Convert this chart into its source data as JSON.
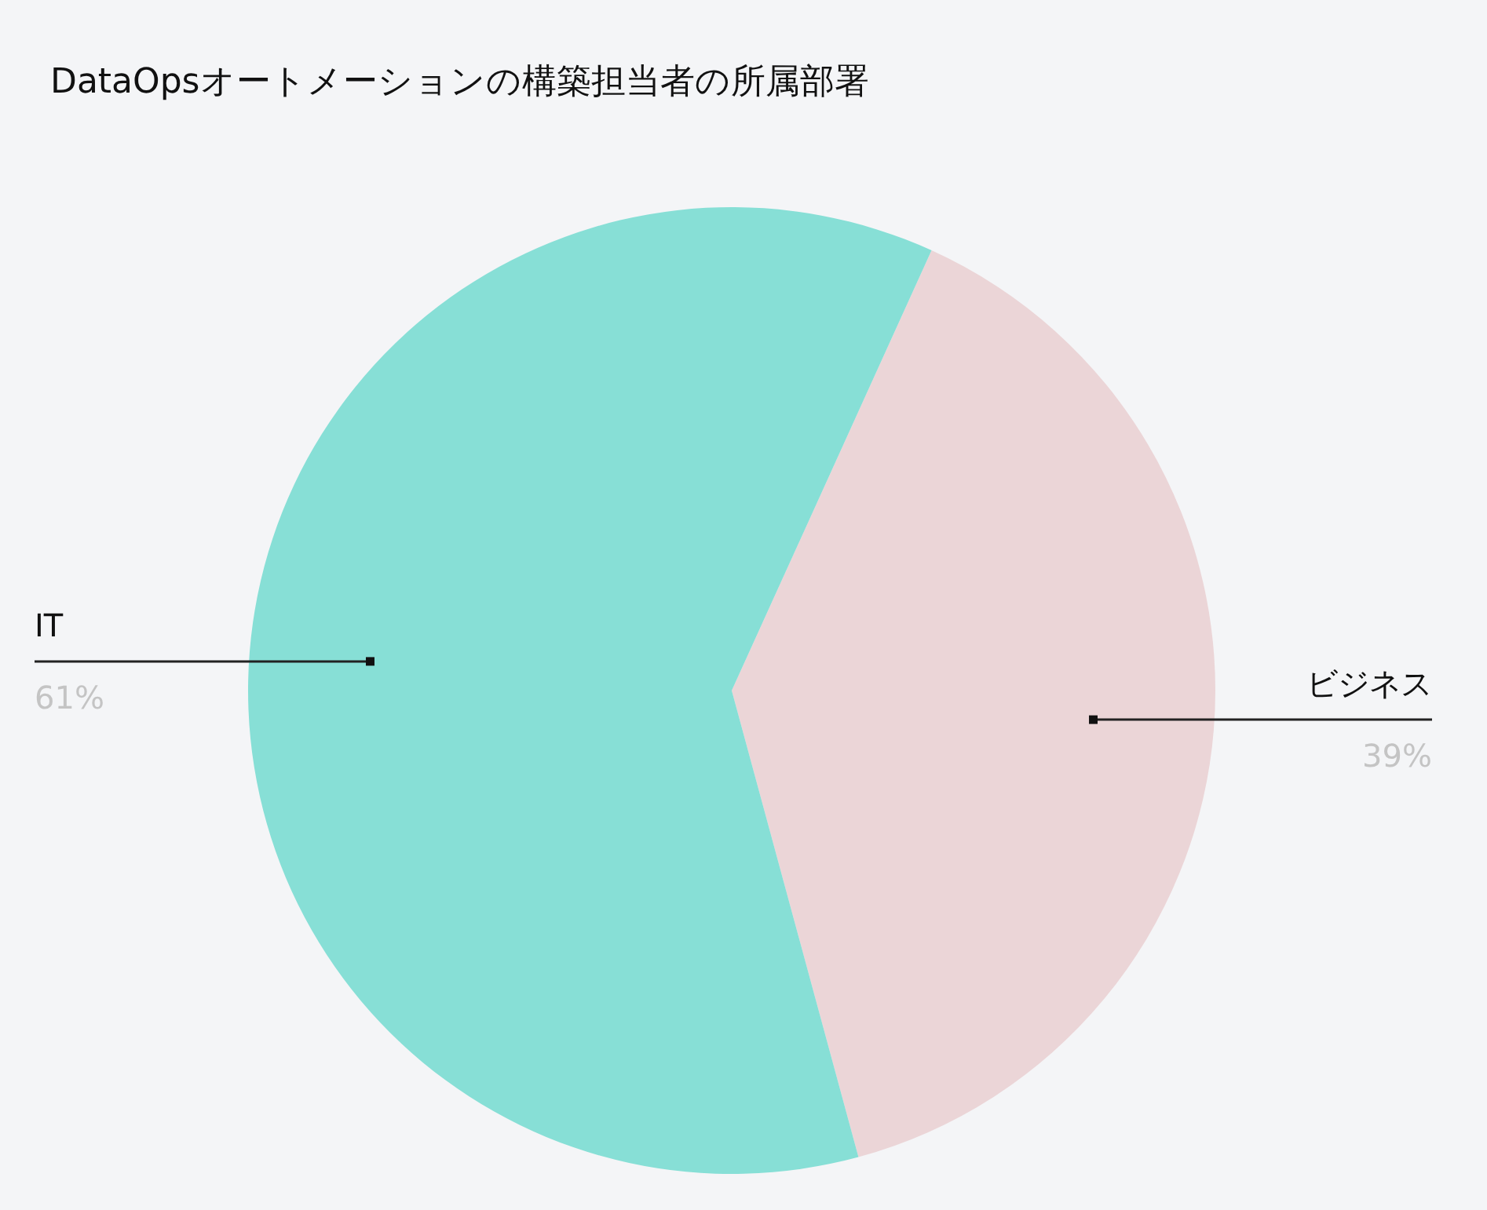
{
  "chart_data": {
    "type": "pie",
    "title": "DataOpsオートメーションの構築担当者の所属部署",
    "categories": [
      "ビジネス",
      "IT"
    ],
    "values": [
      39,
      61
    ],
    "colors": [
      "#ebd5d7",
      "#87dfd6"
    ],
    "value_labels": [
      "39%",
      "61%"
    ]
  }
}
